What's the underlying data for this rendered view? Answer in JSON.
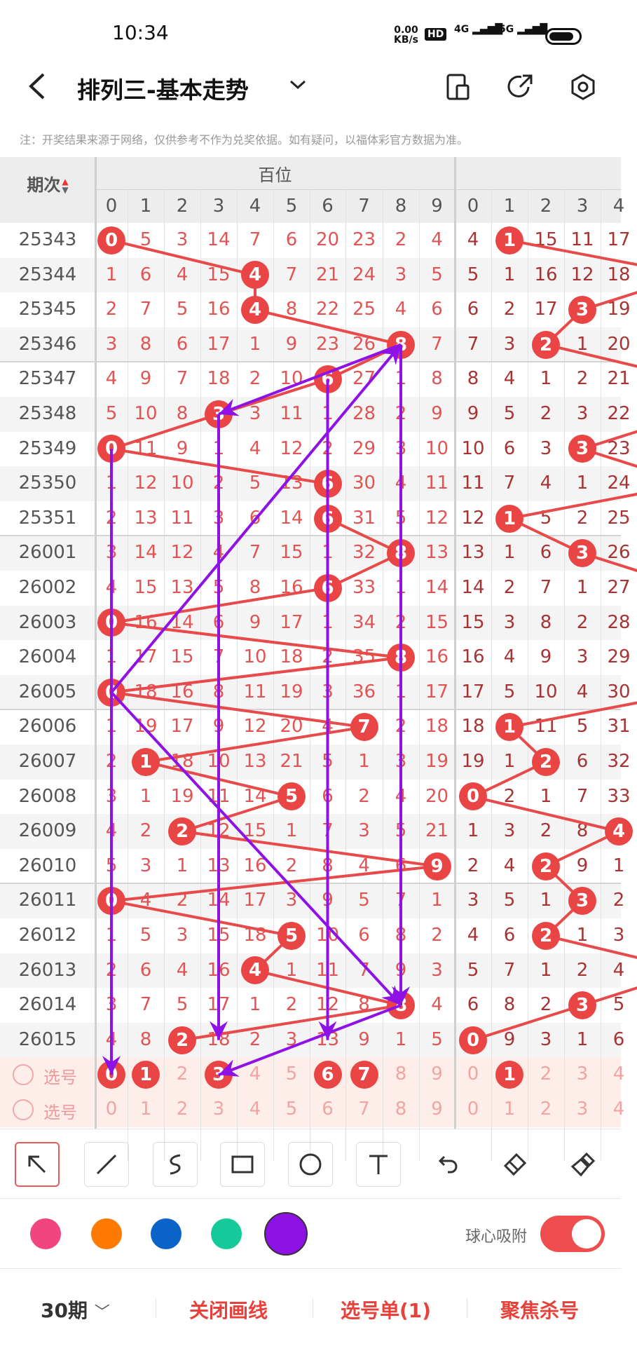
{
  "status_bar": {
    "time": "10:34",
    "net_speed": "0.00",
    "net_unit": "KB/s",
    "hd": "HD",
    "sig1": "4G",
    "sig2": "5G"
  },
  "header": {
    "title": "排列三-基本走势",
    "back_icon": "chevron-left-icon",
    "dropdown_icon": "chevron-down-icon",
    "icons": [
      "phone-split-icon",
      "share-icon",
      "settings-icon"
    ]
  },
  "notice": "注：开奖结果来源于网络，仅供参考不作为兑奖依据。如有疑问，以福体彩官方数据为准。",
  "table": {
    "period_header": "期次",
    "group1_title": "百位",
    "digits": [
      "0",
      "1",
      "2",
      "3",
      "4",
      "5",
      "6",
      "7",
      "8",
      "9"
    ],
    "rows": [
      {
        "p": "25343",
        "h": [
          0,
          5,
          3,
          14,
          7,
          6,
          20,
          23,
          2,
          4
        ],
        "hh": 0,
        "t": [
          4,
          1,
          15,
          11,
          17
        ],
        "th": 1
      },
      {
        "p": "25344",
        "h": [
          1,
          6,
          4,
          15,
          4,
          7,
          21,
          24,
          3,
          5
        ],
        "hh": 4,
        "t": [
          5,
          1,
          16,
          12,
          18
        ],
        "th": null
      },
      {
        "p": "25345",
        "h": [
          2,
          7,
          5,
          16,
          4,
          8,
          22,
          25,
          4,
          6
        ],
        "hh": 4,
        "t": [
          6,
          2,
          17,
          3,
          19
        ],
        "th": 3
      },
      {
        "p": "25346",
        "h": [
          3,
          8,
          6,
          17,
          1,
          9,
          23,
          26,
          8,
          7
        ],
        "hh": 8,
        "t": [
          7,
          3,
          2,
          1,
          20
        ],
        "th": 2
      },
      {
        "p": "25347",
        "h": [
          4,
          9,
          7,
          18,
          2,
          10,
          6,
          27,
          1,
          8
        ],
        "hh": 6,
        "t": [
          8,
          4,
          1,
          2,
          21
        ],
        "th": null
      },
      {
        "p": "25348",
        "h": [
          5,
          10,
          8,
          3,
          3,
          11,
          1,
          28,
          2,
          9
        ],
        "hh": 3,
        "t": [
          9,
          5,
          2,
          3,
          22
        ],
        "th": null
      },
      {
        "p": "25349",
        "h": [
          0,
          11,
          9,
          1,
          4,
          12,
          2,
          29,
          3,
          10
        ],
        "hh": 0,
        "t": [
          10,
          6,
          3,
          3,
          23
        ],
        "th": 3
      },
      {
        "p": "25350",
        "h": [
          1,
          12,
          10,
          2,
          5,
          13,
          6,
          30,
          4,
          11
        ],
        "hh": 6,
        "t": [
          11,
          7,
          4,
          1,
          24
        ],
        "th": null
      },
      {
        "p": "25351",
        "h": [
          2,
          13,
          11,
          3,
          6,
          14,
          6,
          31,
          5,
          12
        ],
        "hh": 6,
        "t": [
          12,
          1,
          5,
          2,
          25
        ],
        "th": 1
      },
      {
        "p": "26001",
        "h": [
          3,
          14,
          12,
          4,
          7,
          15,
          1,
          32,
          8,
          13
        ],
        "hh": 8,
        "t": [
          13,
          1,
          6,
          3,
          26
        ],
        "th": 3
      },
      {
        "p": "26002",
        "h": [
          4,
          15,
          13,
          5,
          8,
          16,
          6,
          33,
          1,
          14
        ],
        "hh": 6,
        "t": [
          14,
          2,
          7,
          1,
          27
        ],
        "th": null
      },
      {
        "p": "26003",
        "h": [
          0,
          16,
          14,
          6,
          9,
          17,
          1,
          34,
          2,
          15
        ],
        "hh": 0,
        "t": [
          15,
          3,
          8,
          2,
          28
        ],
        "th": null
      },
      {
        "p": "26004",
        "h": [
          1,
          17,
          15,
          7,
          10,
          18,
          2,
          35,
          8,
          16
        ],
        "hh": 8,
        "t": [
          16,
          4,
          9,
          3,
          29
        ],
        "th": null
      },
      {
        "p": "26005",
        "h": [
          0,
          18,
          16,
          8,
          11,
          19,
          3,
          36,
          1,
          17
        ],
        "hh": 0,
        "t": [
          17,
          5,
          10,
          4,
          30
        ],
        "th": null
      },
      {
        "p": "26006",
        "h": [
          1,
          19,
          17,
          9,
          12,
          20,
          4,
          7,
          2,
          18
        ],
        "hh": 7,
        "t": [
          18,
          1,
          11,
          5,
          31
        ],
        "th": 1
      },
      {
        "p": "26007",
        "h": [
          2,
          1,
          18,
          10,
          13,
          21,
          5,
          1,
          3,
          19
        ],
        "hh": 1,
        "t": [
          19,
          1,
          2,
          6,
          32
        ],
        "th": 2
      },
      {
        "p": "26008",
        "h": [
          3,
          1,
          19,
          11,
          14,
          5,
          6,
          2,
          4,
          20
        ],
        "hh": 5,
        "t": [
          0,
          2,
          1,
          7,
          33
        ],
        "th": 0
      },
      {
        "p": "26009",
        "h": [
          4,
          2,
          2,
          12,
          15,
          1,
          7,
          3,
          5,
          21
        ],
        "hh": 2,
        "t": [
          1,
          3,
          2,
          8,
          4
        ],
        "th": 4
      },
      {
        "p": "26010",
        "h": [
          5,
          3,
          1,
          13,
          16,
          2,
          8,
          4,
          6,
          9
        ],
        "hh": 9,
        "t": [
          2,
          4,
          2,
          9,
          1
        ],
        "th": 2
      },
      {
        "p": "26011",
        "h": [
          0,
          4,
          2,
          14,
          17,
          3,
          9,
          5,
          7,
          1
        ],
        "hh": 0,
        "t": [
          3,
          5,
          1,
          3,
          2
        ],
        "th": 3
      },
      {
        "p": "26012",
        "h": [
          1,
          5,
          3,
          15,
          18,
          5,
          10,
          6,
          8,
          2
        ],
        "hh": 5,
        "t": [
          4,
          6,
          2,
          1,
          3
        ],
        "th": 2
      },
      {
        "p": "26013",
        "h": [
          2,
          6,
          4,
          16,
          4,
          1,
          11,
          7,
          9,
          3
        ],
        "hh": 4,
        "t": [
          5,
          7,
          1,
          2,
          4
        ],
        "th": null
      },
      {
        "p": "26014",
        "h": [
          3,
          7,
          5,
          17,
          1,
          2,
          12,
          8,
          8,
          4
        ],
        "hh": 8,
        "t": [
          6,
          8,
          2,
          3,
          5
        ],
        "th": 3
      },
      {
        "p": "26015",
        "h": [
          4,
          8,
          2,
          18,
          2,
          3,
          13,
          9,
          1,
          5
        ],
        "hh": 2,
        "t": [
          0,
          9,
          3,
          1,
          6
        ],
        "th": 0
      }
    ],
    "select_label": "选号",
    "select_rows": [
      {
        "h_selected": [
          0,
          1,
          3,
          6,
          7
        ],
        "t_selected": [
          1
        ]
      },
      {
        "h_selected": [],
        "t_selected": []
      }
    ]
  },
  "toolbar": {
    "tools": [
      "arrow-icon",
      "line-icon",
      "curve-icon",
      "rectangle-icon",
      "circle-icon",
      "text-icon",
      "undo-icon",
      "eraser-icon",
      "clear-icon"
    ],
    "selected": "arrow-icon"
  },
  "colors": {
    "swatches": [
      "#f0457f",
      "#ff7a00",
      "#0a63c9",
      "#16c99a",
      "#8e12e6"
    ],
    "selected": "#8e12e6",
    "snap_label": "球心吸附",
    "snap_on": true,
    "toggle_color": "#f04e4e"
  },
  "nav": {
    "period": "30期",
    "close_draw": "关闭画线",
    "pick_list": "选号单(1)",
    "focus_kill": "聚焦杀号"
  },
  "accent": "#ea4545"
}
